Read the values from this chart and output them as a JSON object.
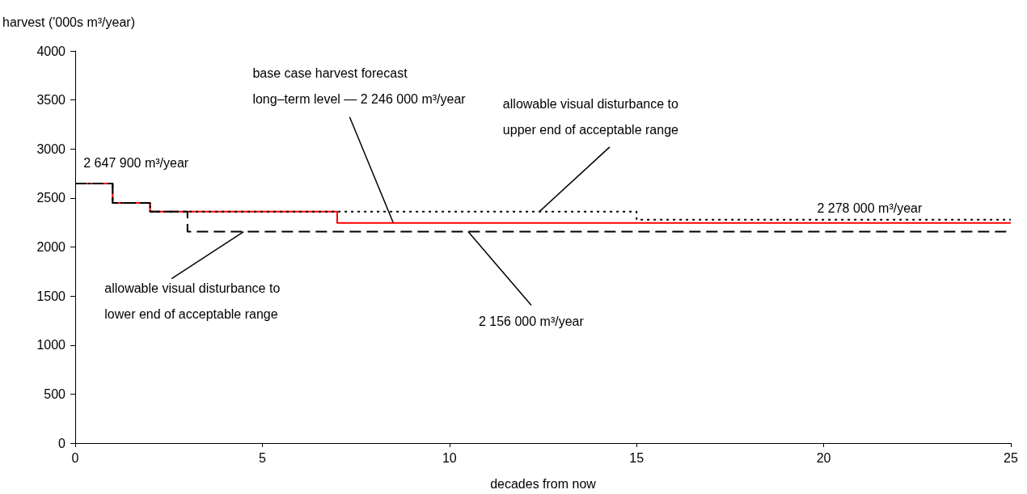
{
  "chart_data": {
    "type": "step",
    "xlabel": "decades from now",
    "ylabel": "harvest ('000s m³/year)",
    "xlim": [
      0,
      25
    ],
    "xticks": [
      0,
      5,
      10,
      15,
      20,
      25
    ],
    "ylim": [
      0,
      4000
    ],
    "yticks": [
      0,
      500,
      1000,
      1500,
      2000,
      2500,
      3000,
      3500,
      4000
    ],
    "grid": false,
    "marker": "none",
    "series": [
      {
        "color": "#ff0000",
        "line_style": "solid",
        "x": [
          0,
          1,
          2,
          7,
          25
        ],
        "values": [
          2648,
          2450,
          2360,
          2246,
          2246
        ]
      },
      {
        "color": "#000000",
        "line_style": "dotted",
        "x": [
          0,
          1,
          2,
          15,
          25
        ],
        "values": [
          2648,
          2450,
          2360,
          2278,
          2278
        ]
      },
      {
        "color": "#000000",
        "line_style": "dashed",
        "x": [
          0,
          1,
          2,
          3,
          25
        ],
        "values": [
          2648,
          2450,
          2360,
          2156,
          2156
        ]
      }
    ],
    "annotations": [
      {
        "text": "2 647 900 m³/year",
        "x": 1,
        "y": 2648
      },
      {
        "text": "base case harvest forecast\nlong–term level — 2 246 000 m³/year",
        "x": 8.5,
        "y": 2246
      },
      {
        "text": "allowable visual disturbance to\nupper end of acceptable range",
        "x": 12.4,
        "y": 2360
      },
      {
        "text": "2 278 000 m³/year",
        "x": 23,
        "y": 2278
      },
      {
        "text": "allowable visual disturbance to\nlower end of acceptable range",
        "x": 4.5,
        "y": 2156
      },
      {
        "text": "2 156 000 m³/year",
        "x": 10.5,
        "y": 2156
      }
    ]
  }
}
